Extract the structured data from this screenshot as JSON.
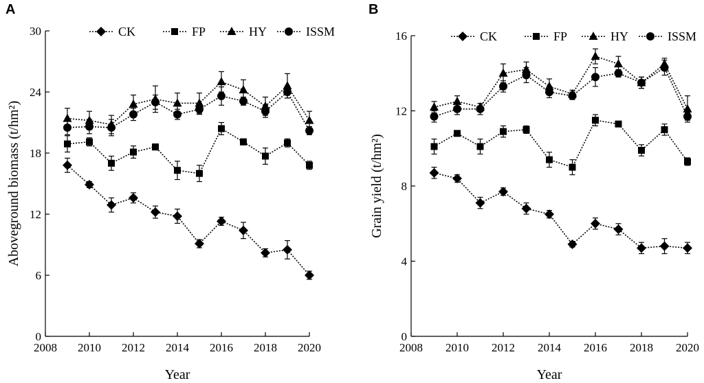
{
  "chart_data": [
    {
      "panel": "A",
      "type": "line",
      "ylabel": "Aboveground biomass (t/hm²)",
      "xlabel": "Year",
      "xlim": [
        2008,
        2020
      ],
      "ylim": [
        0,
        30
      ],
      "xticks": [
        2008,
        2010,
        2012,
        2014,
        2016,
        2018,
        2020
      ],
      "yticks": [
        0,
        6,
        12,
        18,
        24,
        30
      ],
      "legend_position": "top",
      "x": [
        2009,
        2010,
        2011,
        2012,
        2013,
        2014,
        2015,
        2016,
        2017,
        2018,
        2019,
        2020
      ],
      "series": [
        {
          "name": "CK",
          "marker": "diamond",
          "values": [
            16.8,
            14.9,
            12.9,
            13.6,
            12.2,
            11.8,
            9.1,
            11.3,
            10.4,
            8.2,
            8.5,
            6.0
          ],
          "errors": [
            0.7,
            0.3,
            0.7,
            0.5,
            0.6,
            0.7,
            0.4,
            0.4,
            0.8,
            0.4,
            0.9,
            0.4
          ]
        },
        {
          "name": "FP",
          "marker": "square",
          "values": [
            18.9,
            19.1,
            17.0,
            18.1,
            18.6,
            16.3,
            16.0,
            20.4,
            19.1,
            17.7,
            19.0,
            16.8
          ],
          "errors": [
            0.8,
            0.4,
            0.7,
            0.6,
            0.3,
            0.9,
            0.8,
            0.6,
            0.3,
            0.8,
            0.4,
            0.4
          ]
        },
        {
          "name": "HY",
          "marker": "triangle",
          "values": [
            21.4,
            21.2,
            20.8,
            22.8,
            23.3,
            22.9,
            22.9,
            25.0,
            24.2,
            22.6,
            24.6,
            21.2
          ],
          "errors": [
            1.0,
            0.9,
            0.9,
            0.9,
            1.3,
            1.0,
            1.0,
            1.0,
            1.0,
            0.9,
            1.2,
            0.9
          ]
        },
        {
          "name": "ISSM",
          "marker": "circle",
          "values": [
            20.5,
            20.6,
            20.5,
            21.8,
            23.0,
            21.8,
            22.3,
            23.6,
            23.1,
            22.1,
            24.0,
            20.2
          ],
          "errors": [
            0.7,
            0.7,
            0.8,
            0.6,
            0.7,
            0.5,
            0.5,
            0.9,
            0.4,
            0.6,
            0.6,
            0.4
          ]
        }
      ]
    },
    {
      "panel": "B",
      "type": "line",
      "ylabel": "Grain yield (t/hm²)",
      "xlabel": "Year",
      "xlim": [
        2008,
        2020
      ],
      "ylim": [
        0,
        16
      ],
      "xticks": [
        2008,
        2010,
        2012,
        2014,
        2016,
        2018,
        2020
      ],
      "yticks": [
        0,
        4,
        8,
        12,
        16
      ],
      "legend_position": "top",
      "x": [
        2009,
        2010,
        2011,
        2012,
        2013,
        2014,
        2015,
        2016,
        2017,
        2018,
        2019,
        2020
      ],
      "series": [
        {
          "name": "CK",
          "marker": "diamond",
          "values": [
            8.7,
            8.4,
            7.1,
            7.7,
            6.8,
            6.5,
            4.9,
            6.0,
            5.7,
            4.7,
            4.8,
            4.7
          ],
          "errors": [
            0.3,
            0.2,
            0.3,
            0.2,
            0.3,
            0.2,
            0.15,
            0.3,
            0.3,
            0.3,
            0.4,
            0.3
          ]
        },
        {
          "name": "FP",
          "marker": "square",
          "values": [
            10.1,
            10.8,
            10.1,
            10.9,
            11.0,
            9.4,
            9.0,
            11.5,
            11.3,
            9.9,
            11.0,
            9.3
          ],
          "errors": [
            0.4,
            0.15,
            0.4,
            0.3,
            0.2,
            0.4,
            0.4,
            0.3,
            0.1,
            0.3,
            0.3,
            0.2
          ]
        },
        {
          "name": "HY",
          "marker": "triangle",
          "values": [
            12.2,
            12.5,
            12.2,
            14.0,
            14.2,
            13.3,
            12.9,
            14.9,
            14.5,
            13.5,
            14.5,
            12.1
          ],
          "errors": [
            0.3,
            0.3,
            0.2,
            0.5,
            0.4,
            0.4,
            0.2,
            0.4,
            0.4,
            0.3,
            0.3,
            0.7
          ]
        },
        {
          "name": "ISSM",
          "marker": "circle",
          "values": [
            11.7,
            12.1,
            12.1,
            13.3,
            13.9,
            13.0,
            12.8,
            13.8,
            14.0,
            13.5,
            14.3,
            11.7
          ],
          "errors": [
            0.3,
            0.3,
            0.3,
            0.3,
            0.4,
            0.3,
            0.2,
            0.5,
            0.2,
            0.3,
            0.4,
            0.2
          ]
        }
      ]
    }
  ]
}
